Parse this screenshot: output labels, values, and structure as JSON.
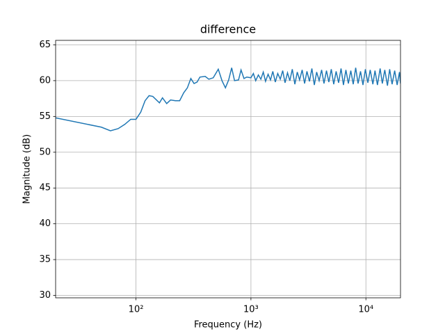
{
  "chart_data": {
    "type": "line",
    "title": "difference",
    "xlabel": "Frequency (Hz)",
    "ylabel": "Magnitude (dB)",
    "xscale": "log",
    "grid": true,
    "color": "#1f77b4",
    "xlim": [
      20,
      20000
    ],
    "ylim": [
      29.66,
      65.63
    ],
    "xticks": [
      {
        "value": 100,
        "label": "10²"
      },
      {
        "value": 1000,
        "label": "10³"
      },
      {
        "value": 10000,
        "label": "10⁴"
      }
    ],
    "yticks": [
      30,
      35,
      40,
      45,
      50,
      55,
      60,
      65
    ],
    "x": [
      20,
      50,
      60,
      70,
      80,
      90,
      100,
      110,
      120,
      130,
      140,
      160,
      170,
      185,
      200,
      220,
      240,
      260,
      280,
      300,
      320,
      340,
      360,
      400,
      430,
      470,
      520,
      560,
      600,
      640,
      680,
      720,
      780,
      820,
      870,
      920,
      1000,
      1050,
      1100,
      1160,
      1220,
      1280,
      1340,
      1410,
      1480,
      1550,
      1630,
      1710,
      1800,
      1890,
      1980,
      2080,
      2180,
      2290,
      2410,
      2530,
      2650,
      2790,
      2930,
      3070,
      3230,
      3390,
      3560,
      3730,
      3920,
      4120,
      4320,
      4540,
      4760,
      5000,
      5250,
      5510,
      5790,
      6080,
      6380,
      6700,
      7040,
      7390,
      7760,
      8150,
      8550,
      8980,
      9430,
      9900,
      10400,
      10900,
      11500,
      12000,
      12600,
      13300,
      13900,
      14600,
      15400,
      16100,
      16900,
      17800,
      18700,
      19600,
      20000
    ],
    "values": [
      54.8,
      53.5,
      53.0,
      53.3,
      53.9,
      54.6,
      54.6,
      55.6,
      57.2,
      57.9,
      57.8,
      56.9,
      57.6,
      56.8,
      57.3,
      57.2,
      57.2,
      58.3,
      59.0,
      60.3,
      59.6,
      59.8,
      60.5,
      60.6,
      60.2,
      60.4,
      61.6,
      60.0,
      59.0,
      60.1,
      61.8,
      60.0,
      60.1,
      61.5,
      60.3,
      60.5,
      60.4,
      61.0,
      60.0,
      60.8,
      60.2,
      61.2,
      59.9,
      60.9,
      60.1,
      61.3,
      59.8,
      61.0,
      60.2,
      61.4,
      59.7,
      61.1,
      60.0,
      61.6,
      59.5,
      61.2,
      60.1,
      61.5,
      59.6,
      61.3,
      59.9,
      61.7,
      59.4,
      61.2,
      60.0,
      61.5,
      59.6,
      61.4,
      59.8,
      61.6,
      59.5,
      61.3,
      59.7,
      61.7,
      59.4,
      61.5,
      59.6,
      61.4,
      59.5,
      61.8,
      59.6,
      61.3,
      59.4,
      61.6,
      59.7,
      61.5,
      59.5,
      61.4,
      59.4,
      61.7,
      59.6,
      61.5,
      59.3,
      61.6,
      59.5,
      61.4,
      59.4,
      61.2,
      59.6
    ]
  }
}
